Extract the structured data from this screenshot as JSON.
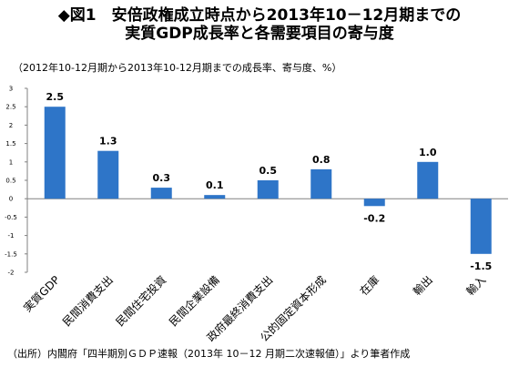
{
  "header": {
    "title_line1": "◆図1　安倍政権成立時点から2013年10－12月期までの",
    "title_line2": "実質GDP成長率と各需要項目の寄与度",
    "subtitle": "（2012年10-12月期から2013年10-12月期までの成長率、寄与度、%）"
  },
  "footer": {
    "source": "（出所）内閣府「四半期別ＧＤＰ速報（2013年 10－12 月期二次速報値）」より筆者作成"
  },
  "colors": {
    "bar": "#2e75c8",
    "axis": "#808080"
  },
  "chart_data": {
    "type": "bar",
    "title": "",
    "xlabel": "",
    "ylabel": "",
    "categories": [
      "実質GDP",
      "民間消費支出",
      "民間住宅投資",
      "民間企業設備",
      "政府最終消費支出",
      "公的固定資本形成",
      "在庫",
      "輸出",
      "輸入"
    ],
    "values": [
      2.5,
      1.3,
      0.3,
      0.1,
      0.5,
      0.8,
      -0.2,
      1.0,
      -1.5
    ],
    "value_labels": [
      "2.5",
      "1.3",
      "0.3",
      "0.1",
      "0.5",
      "0.8",
      "-0.2",
      "1.0",
      "-1.5"
    ],
    "ylim": [
      -2,
      3
    ],
    "yticks": [
      -2,
      -1.5,
      -1,
      -0.5,
      0,
      0.5,
      1,
      1.5,
      2,
      2.5,
      3
    ],
    "ytick_labels": [
      "-2",
      "-1.5",
      "-1",
      "-0.5",
      "0",
      "0.5",
      "1",
      "1.5",
      "2",
      "2.5",
      "3"
    ],
    "grid": false,
    "legend": "none"
  }
}
